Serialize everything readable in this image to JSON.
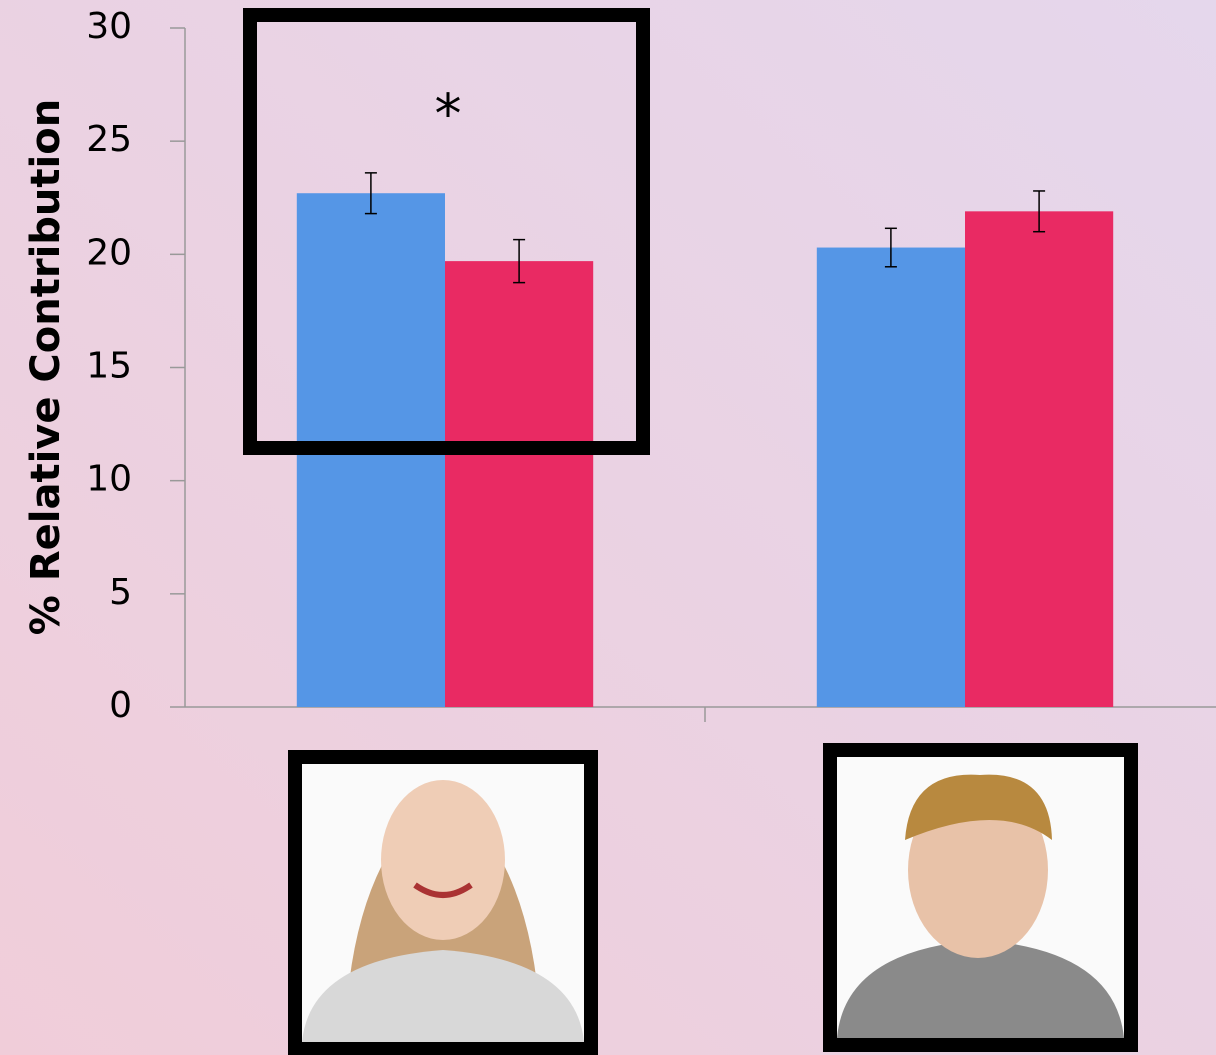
{
  "chart_data": {
    "type": "bar",
    "y_label": "% Relative Contribution",
    "annotation": "*",
    "categories": [
      null,
      null
    ],
    "series": [
      {
        "color": "#5596e6",
        "values": [
          22.7,
          20.3
        ],
        "errors": [
          0.9,
          0.85
        ]
      },
      {
        "color": "#e92a63",
        "values": [
          19.7,
          21.9
        ],
        "errors": [
          0.95,
          0.9
        ]
      }
    ],
    "ylim": [
      0,
      30
    ],
    "yticks": [
      0,
      5,
      10,
      15,
      20,
      25,
      30
    ]
  }
}
